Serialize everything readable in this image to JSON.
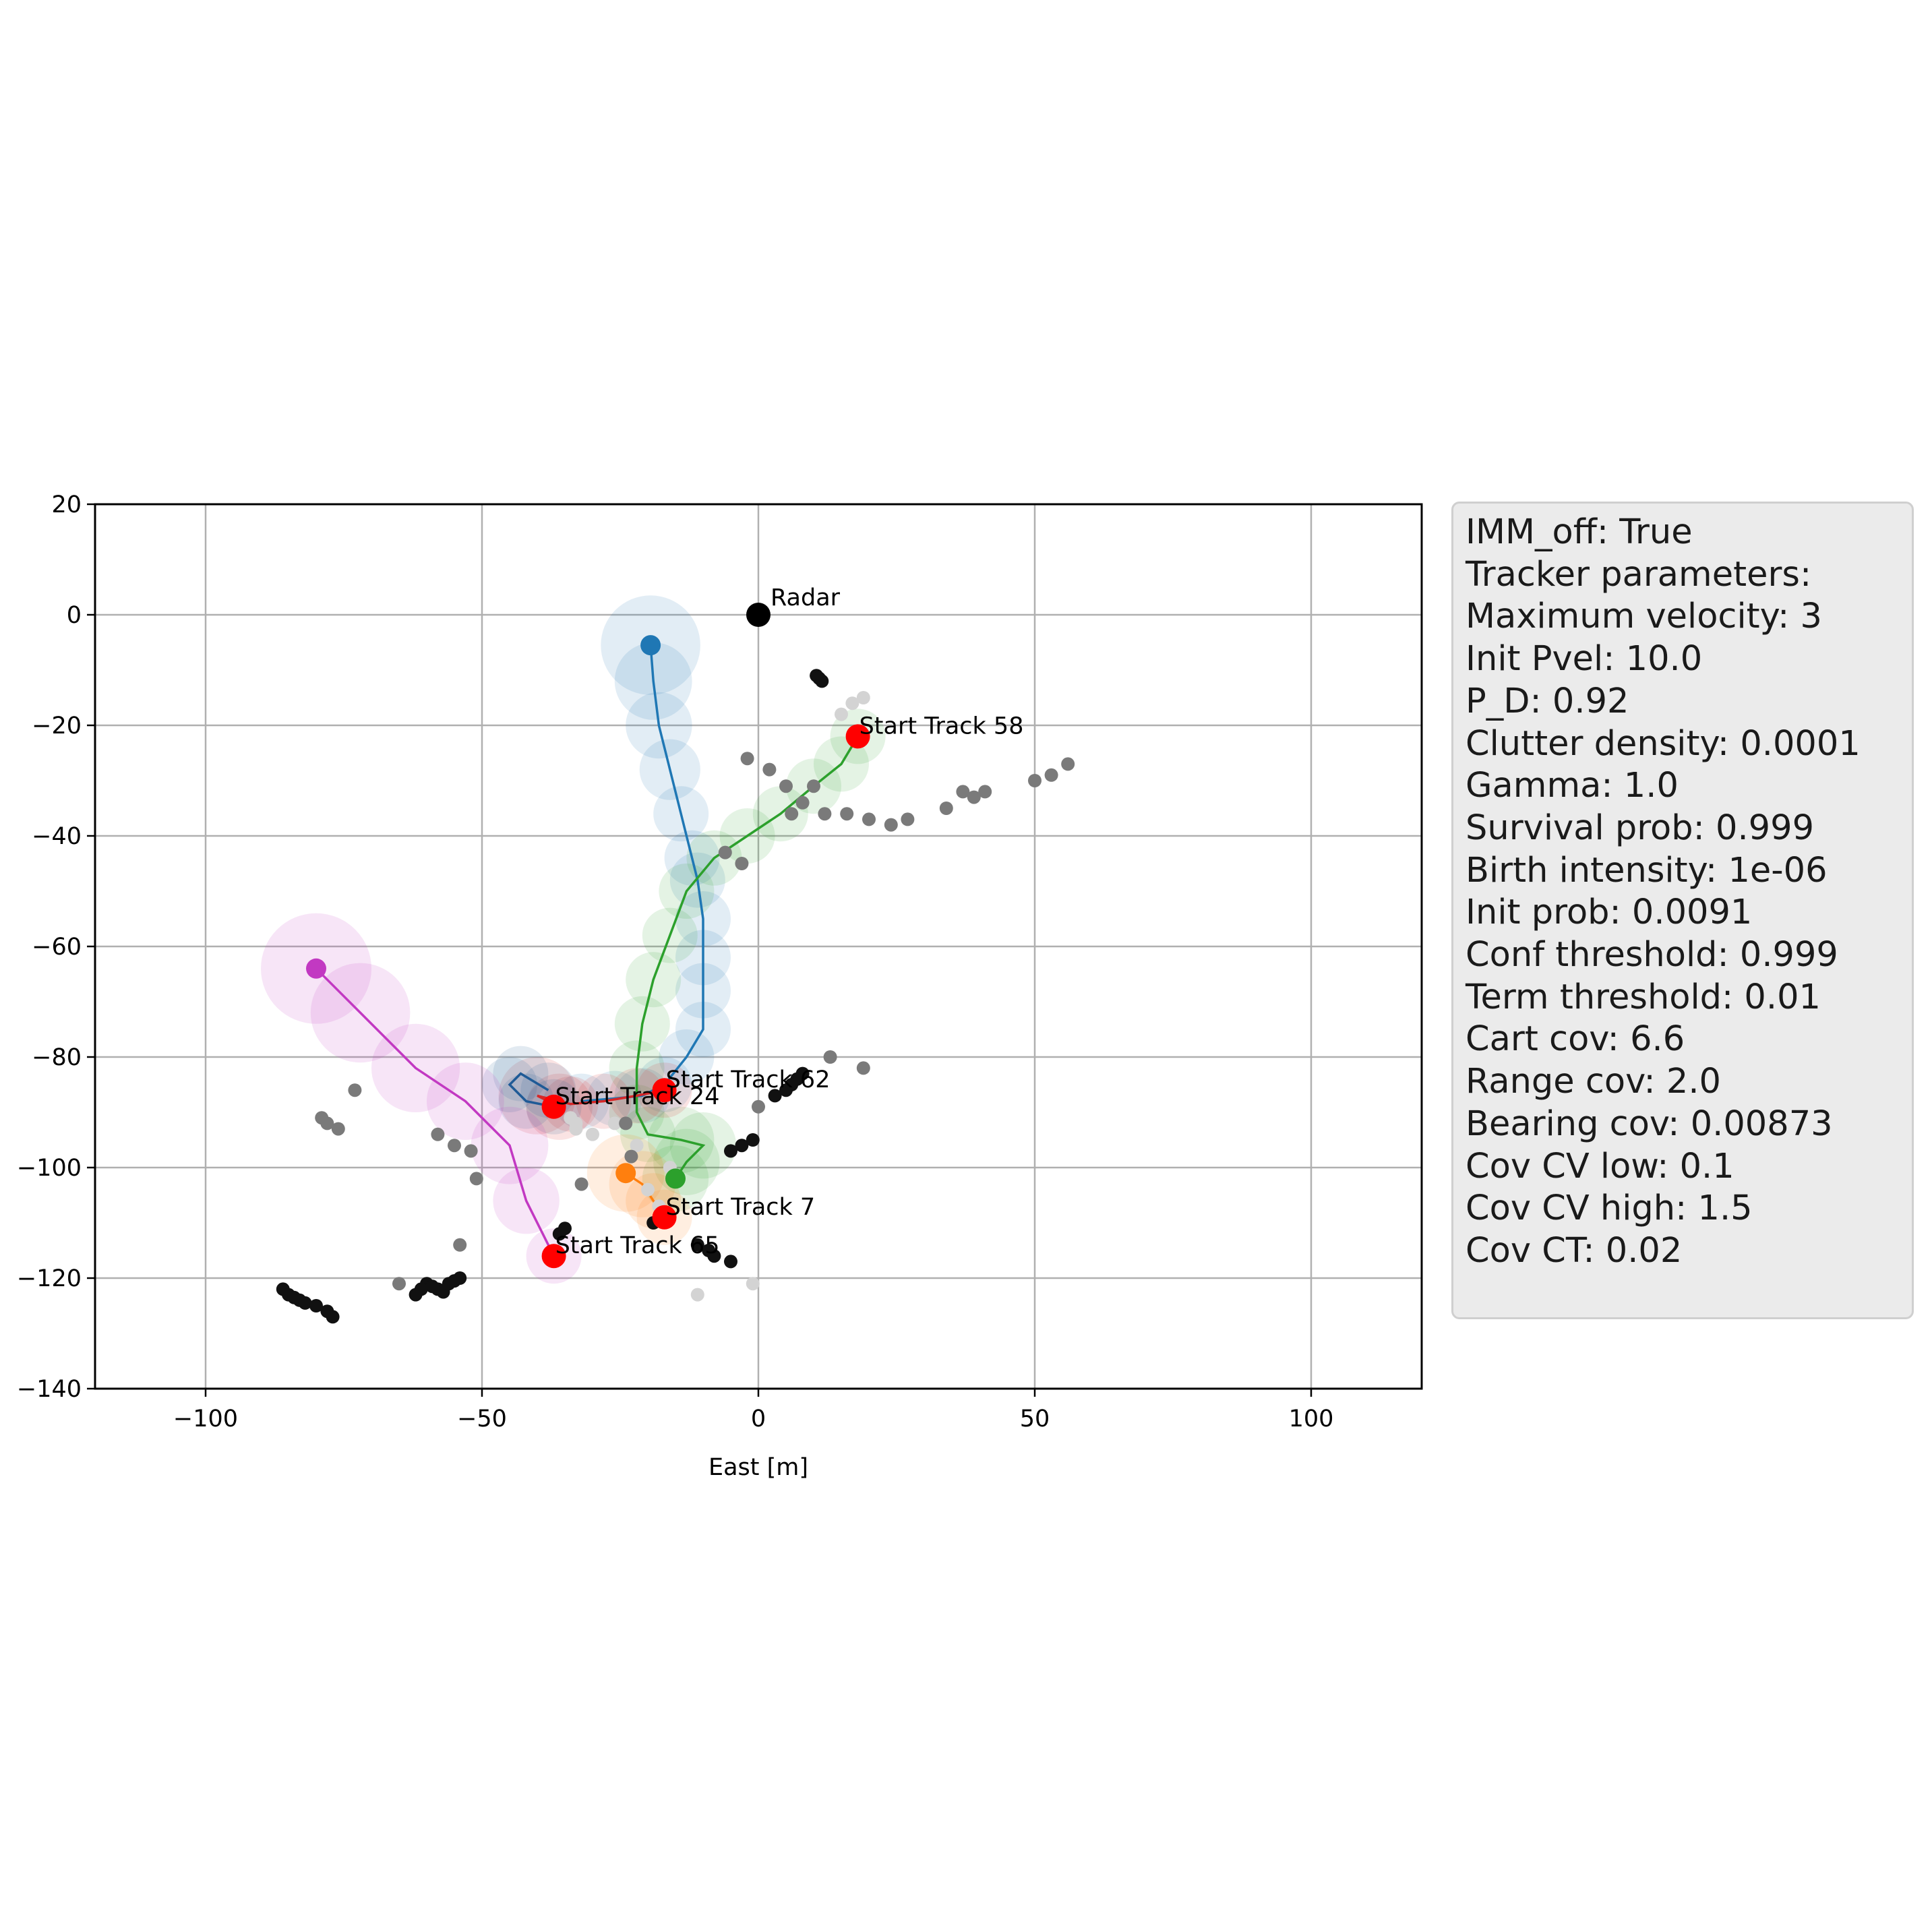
{
  "chart_data": {
    "type": "scatter",
    "xlabel": "East [m]",
    "ylabel": "",
    "xlim": [
      -120,
      120
    ],
    "ylim": [
      -140,
      20
    ],
    "xticks": [
      -100,
      -50,
      0,
      50,
      100
    ],
    "yticks": [
      20,
      0,
      -20,
      -40,
      -60,
      -80,
      -100,
      -120,
      -140
    ],
    "grid": true,
    "radar": {
      "label": "Radar",
      "x": 0,
      "y": 0
    },
    "tracks": [
      {
        "id": "blue",
        "color": "#1f77b4",
        "start_label": "",
        "start": null,
        "path": [
          [
            -19.5,
            -5.5
          ],
          [
            -19,
            -12
          ],
          [
            -18,
            -20
          ],
          [
            -16,
            -28
          ],
          [
            -14,
            -36
          ],
          [
            -12,
            -44
          ],
          [
            -11,
            -48
          ],
          [
            -10,
            -55
          ],
          [
            -10,
            -62
          ],
          [
            -10,
            -68
          ],
          [
            -10,
            -75
          ],
          [
            -13,
            -80
          ],
          [
            -17,
            -85
          ],
          [
            -21,
            -87
          ],
          [
            -26,
            -87.5
          ],
          [
            -32,
            -88
          ]
        ],
        "cov_radius": [
          9,
          7,
          6,
          5.5,
          5,
          5,
          5,
          5,
          5,
          5,
          5,
          5,
          5,
          5,
          5,
          5
        ]
      },
      {
        "id": "green",
        "color": "#2ca02c",
        "start_label": "Start Track 58",
        "start": [
          18,
          -22
        ],
        "path": [
          [
            18,
            -22
          ],
          [
            15,
            -27
          ],
          [
            10,
            -31
          ],
          [
            4,
            -36
          ],
          [
            -2,
            -40
          ],
          [
            -8,
            -44
          ],
          [
            -13,
            -50
          ],
          [
            -16,
            -58
          ],
          [
            -19,
            -66
          ],
          [
            -21,
            -74
          ],
          [
            -22,
            -82
          ],
          [
            -22,
            -90
          ],
          [
            -20,
            -94
          ],
          [
            -14,
            -95
          ],
          [
            -10,
            -96
          ],
          [
            -13,
            -99
          ],
          [
            -15,
            -102
          ]
        ],
        "cov_radius": [
          5,
          5,
          5,
          5,
          5,
          5,
          5,
          5,
          5,
          5,
          5,
          5,
          5,
          6,
          6,
          6,
          6
        ]
      },
      {
        "id": "red",
        "color": "#d62728",
        "start_label": "Start Track 62",
        "start": [
          -17,
          -86
        ],
        "path": [
          [
            -17,
            -86
          ],
          [
            -22,
            -87
          ],
          [
            -28,
            -88
          ],
          [
            -34,
            -88.5
          ],
          [
            -40,
            -87
          ],
          [
            -36,
            -89
          ]
        ],
        "cov_radius": [
          5,
          5,
          5,
          5,
          7,
          6
        ]
      },
      {
        "id": "navy",
        "color": "#1f5a96",
        "start_label": "Start Track 24",
        "start": [
          -37,
          -89
        ],
        "path": [
          [
            -37,
            -89
          ],
          [
            -42,
            -88
          ],
          [
            -45,
            -85
          ],
          [
            -43,
            -83
          ],
          [
            -38,
            -86
          ]
        ],
        "cov_radius": [
          5,
          5,
          5,
          5,
          5
        ]
      },
      {
        "id": "orange",
        "color": "#ff7f0e",
        "start_label": "Start Track 7",
        "start": [
          -17,
          -109
        ],
        "path": [
          [
            -17,
            -109
          ],
          [
            -19,
            -106
          ],
          [
            -21,
            -103
          ],
          [
            -24,
            -101
          ]
        ],
        "cov_radius": [
          5,
          5,
          6,
          7
        ]
      },
      {
        "id": "magenta",
        "color": "#c239c2",
        "start_label": "Start Track 65",
        "start": [
          -37,
          -116
        ],
        "path": [
          [
            -37,
            -116
          ],
          [
            -42,
            -106
          ],
          [
            -45,
            -96
          ],
          [
            -53,
            -88
          ],
          [
            -62,
            -82
          ],
          [
            -72,
            -72
          ],
          [
            -80,
            -64
          ]
        ],
        "cov_radius": [
          5,
          6,
          7,
          7,
          8,
          9,
          10
        ]
      }
    ],
    "detections_black": [
      [
        10.5,
        -11
      ],
      [
        11,
        -11.5
      ],
      [
        11.5,
        -12
      ],
      [
        8,
        -83
      ],
      [
        7,
        -84
      ],
      [
        6,
        -85
      ],
      [
        5,
        -86
      ],
      [
        3,
        -87
      ],
      [
        -1,
        -95
      ],
      [
        -3,
        -96
      ],
      [
        -5,
        -97
      ],
      [
        -11,
        -114
      ],
      [
        -9,
        -115
      ],
      [
        -8,
        -116
      ],
      [
        -5,
        -117
      ],
      [
        -35,
        -111
      ],
      [
        -36,
        -112
      ],
      [
        -86,
        -122
      ],
      [
        -85,
        -123
      ],
      [
        -84,
        -123.5
      ],
      [
        -83,
        -124
      ],
      [
        -82,
        -124.5
      ],
      [
        -80,
        -125
      ],
      [
        -78,
        -126
      ],
      [
        -77,
        -127
      ],
      [
        -60,
        -121
      ],
      [
        -59,
        -121.5
      ],
      [
        -58,
        -122
      ],
      [
        -57,
        -122.5
      ],
      [
        -56,
        -121
      ],
      [
        -55,
        -120.5
      ],
      [
        -54,
        -120
      ],
      [
        -61,
        -122
      ],
      [
        -62,
        -123
      ],
      [
        -19,
        -110
      ]
    ],
    "detections_gray": [
      [
        -2,
        -26
      ],
      [
        2,
        -28
      ],
      [
        5,
        -31
      ],
      [
        8,
        -34
      ],
      [
        12,
        -36
      ],
      [
        16,
        -36
      ],
      [
        20,
        -37
      ],
      [
        24,
        -38
      ],
      [
        27,
        -37
      ],
      [
        34,
        -35
      ],
      [
        37,
        -32
      ],
      [
        39,
        -33
      ],
      [
        41,
        -32
      ],
      [
        50,
        -30
      ],
      [
        53,
        -29
      ],
      [
        56,
        -27
      ],
      [
        -73,
        -86
      ],
      [
        -79,
        -91
      ],
      [
        -78,
        -92
      ],
      [
        -76,
        -93
      ],
      [
        -58,
        -94
      ],
      [
        -55,
        -96
      ],
      [
        -52,
        -97
      ],
      [
        -51,
        -102
      ],
      [
        -32,
        -103
      ],
      [
        -54,
        -114
      ],
      [
        -23,
        -98
      ],
      [
        -24,
        -92
      ],
      [
        0,
        -89
      ],
      [
        13,
        -80
      ],
      [
        19,
        -82
      ],
      [
        -65,
        -121
      ],
      [
        6,
        -36
      ],
      [
        10,
        -31
      ],
      [
        -6,
        -43
      ],
      [
        -3,
        -45
      ]
    ],
    "detections_light": [
      [
        17,
        -16
      ],
      [
        19,
        -15
      ],
      [
        15,
        -18
      ],
      [
        -11,
        -123
      ],
      [
        -1,
        -121
      ],
      [
        -34,
        -91
      ],
      [
        -33,
        -93
      ],
      [
        -30,
        -94
      ],
      [
        -26,
        -92
      ],
      [
        -22,
        -96
      ],
      [
        -16,
        -100
      ],
      [
        -20,
        -104
      ],
      [
        -18,
        -107
      ],
      [
        -33,
        -92
      ]
    ],
    "info_box": [
      "IMM_off: True",
      "Tracker parameters:",
      "Maximum velocity: 3",
      "Init Pvel: 10.0",
      "P_D: 0.92",
      "Clutter density: 0.0001",
      "Gamma: 1.0",
      "Survival prob: 0.999",
      "Birth intensity: 1e-06",
      "Init prob: 0.0091",
      "Conf threshold: 0.999",
      "Term threshold: 0.01",
      "Cart cov: 6.6",
      "Range cov: 2.0",
      "Bearing cov: 0.00873",
      "Cov CV low: 0.1",
      "Cov CV high: 1.5",
      "Cov CT: 0.02"
    ]
  }
}
